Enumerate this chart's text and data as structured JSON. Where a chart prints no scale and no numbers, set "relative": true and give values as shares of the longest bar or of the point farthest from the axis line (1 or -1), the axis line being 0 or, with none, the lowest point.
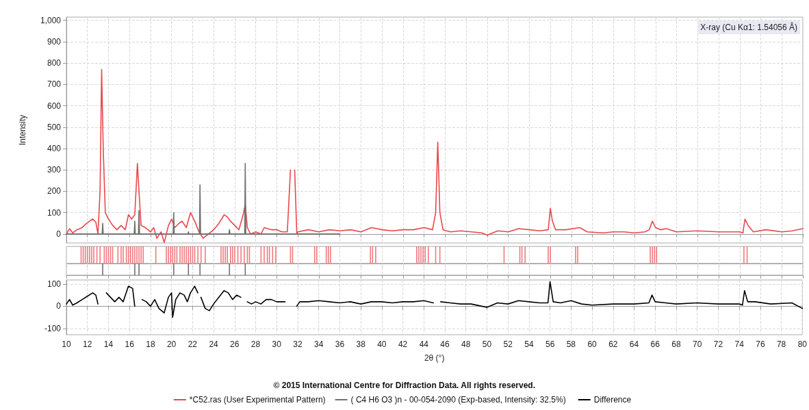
{
  "chart_data": [
    {
      "type": "line",
      "ylabel": "Intensity",
      "xlim": [
        10,
        80
      ],
      "xticks": [
        10,
        12,
        14,
        16,
        18,
        20,
        22,
        24,
        26,
        28,
        30,
        32,
        34,
        36,
        38,
        40,
        42,
        44,
        46,
        48,
        50,
        52,
        54,
        56,
        58,
        60,
        62,
        64,
        66,
        68,
        70,
        72,
        74,
        76,
        78,
        80
      ],
      "ylim": [
        -42,
        1015
      ],
      "yticks": [
        0,
        100,
        200,
        300,
        400,
        500,
        600,
        700,
        800,
        900,
        {
          "value": 1000,
          "label": "1,000"
        }
      ],
      "grid": true,
      "legend": "bottom",
      "marker": "none",
      "line_style": "solid",
      "tick_labels": "y",
      "annotations": [
        "X-ray (Cu Kα1: 1.54056 Å)",
        "© 2015 International Centre for Diffraction Data. All rights reserved."
      ],
      "series": [
        {
          "name": "*C52.ras (User Experimental Pattern)",
          "color": "#e8474c",
          "x": [
            10,
            10.3,
            10.6,
            11,
            11.5,
            11.8,
            12.2,
            12.5,
            12.8,
            13.0,
            13.2,
            13.35,
            13.5,
            13.7,
            14,
            14.4,
            14.8,
            15.2,
            15.6,
            15.9,
            16.2,
            16.5,
            16.75,
            16.9,
            17.1,
            17.5,
            18,
            18.3,
            18.6,
            19,
            19.3,
            19.7,
            20,
            20.3,
            20.7,
            21,
            21.4,
            21.8,
            22.2,
            22.6,
            23,
            23.5,
            24,
            24.5,
            25,
            25.3,
            25.6,
            26,
            26.4,
            26.8,
            27.0,
            27.2,
            27.5,
            28,
            28.5,
            28.8,
            29.5,
            30,
            30.5,
            31,
            31.3,
            31.5,
            31.7,
            31.9,
            32,
            33,
            34,
            35,
            36,
            37,
            38,
            39,
            40,
            41,
            42,
            43,
            44,
            44.8,
            45.1,
            45.3,
            45.5,
            45.8,
            46.5,
            47.5,
            48.5,
            49.5,
            50,
            51,
            52,
            53,
            54,
            55,
            55.8,
            56.0,
            56.2,
            56.5,
            57.5,
            58.8,
            59.5,
            61,
            62,
            63,
            64,
            65,
            65.4,
            65.7,
            66.0,
            66.5,
            67,
            68,
            70,
            72,
            74,
            74.3,
            74.5,
            74.8,
            75.3,
            76.5,
            78,
            79,
            80
          ],
          "values": [
            0,
            25,
            5,
            20,
            30,
            45,
            60,
            70,
            55,
            0,
            200,
            770,
            400,
            100,
            70,
            40,
            20,
            40,
            20,
            90,
            70,
            90,
            330,
            200,
            40,
            30,
            10,
            30,
            -20,
            10,
            -40,
            40,
            70,
            30,
            50,
            60,
            30,
            100,
            60,
            10,
            -20,
            0,
            20,
            50,
            90,
            80,
            60,
            40,
            20,
            90,
            140,
            30,
            0,
            10,
            0,
            30,
            20,
            20,
            10,
            10,
            300,
            null,
            300,
            0,
            10,
            20,
            10,
            20,
            15,
            20,
            10,
            30,
            20,
            15,
            20,
            20,
            30,
            20,
            100,
            430,
            100,
            20,
            10,
            15,
            10,
            5,
            -5,
            15,
            10,
            25,
            20,
            15,
            20,
            120,
            60,
            20,
            20,
            30,
            10,
            5,
            10,
            10,
            5,
            10,
            20,
            60,
            30,
            20,
            25,
            10,
            15,
            10,
            10,
            5,
            70,
            40,
            10,
            20,
            10,
            15,
            25
          ]
        },
        {
          "name": "( C4 H6 O3 )n - 00-054-2090 (Exp-based, Intensity: 32.5%)",
          "color": "#707070",
          "x": [
            10,
            13.4,
            13.45,
            13.5,
            16.45,
            16.5,
            16.55,
            16.85,
            16.9,
            16.95,
            20.15,
            20.2,
            20.25,
            21.55,
            21.6,
            21.65,
            22.65,
            22.7,
            22.75,
            25.45,
            25.5,
            25.55,
            26.95,
            27.0,
            27.05,
            36
          ],
          "values": [
            0,
            0,
            50,
            0,
            0,
            60,
            0,
            0,
            110,
            0,
            0,
            100,
            0,
            0,
            10,
            0,
            0,
            230,
            0,
            0,
            20,
            0,
            0,
            330,
            0,
            0
          ]
        }
      ]
    },
    {
      "type": "bar",
      "relative": true,
      "xlim": [
        10,
        80
      ],
      "xticks": [
        10,
        12,
        14,
        16,
        18,
        20,
        22,
        24,
        26,
        28,
        30,
        32,
        34,
        36,
        38,
        40,
        42,
        44,
        46,
        48,
        50,
        52,
        54,
        56,
        58,
        60,
        62,
        64,
        66,
        68,
        70,
        72,
        74,
        76,
        78,
        80
      ],
      "grid": "x",
      "tick_labels": false,
      "series": [
        {
          "color": "#f07a7e",
          "x": [
            11.4,
            11.6,
            11.8,
            12.0,
            12.2,
            12.4,
            12.6,
            12.9,
            13.2,
            13.6,
            13.8,
            14.0,
            14.2,
            14.4,
            14.9,
            15.2,
            15.4,
            15.7,
            15.9,
            16.1,
            16.3,
            16.5,
            16.7,
            16.9,
            17.1,
            17.3,
            18.5,
            19.5,
            19.7,
            19.9,
            20.1,
            20.3,
            20.5,
            20.8,
            21.0,
            21.2,
            21.4,
            21.6,
            21.8,
            22.0,
            22.2,
            22.5,
            22.8,
            23.2,
            24.7,
            24.9,
            25.1,
            25.3,
            25.6,
            25.8,
            26.0,
            26.3,
            26.6,
            26.9,
            27.2,
            27.4,
            28.5,
            28.8,
            29.1,
            29.3,
            29.6,
            29.9,
            31.3,
            31.5,
            33.6,
            33.8,
            34.7,
            34.9,
            35.1,
            38.9,
            39.1,
            39.4,
            43.3,
            43.5,
            43.7,
            43.9,
            44.1,
            44.4,
            45.1,
            45.5,
            51.6,
            53.1,
            53.3,
            53.6,
            55.8,
            56.0,
            58.4,
            58.6,
            65.5,
            65.7,
            65.9,
            66.1,
            74.4,
            74.7
          ],
          "values": [
            1,
            1,
            1,
            1,
            1,
            1,
            1,
            1,
            1,
            1,
            1,
            1,
            1,
            1,
            1,
            1,
            1,
            1,
            1,
            1,
            1,
            1,
            1,
            1,
            1,
            1,
            1,
            1,
            1,
            1,
            1,
            1,
            1,
            1,
            1,
            1,
            1,
            1,
            1,
            1,
            1,
            1,
            1,
            1,
            1,
            1,
            1,
            1,
            1,
            1,
            1,
            1,
            1,
            1,
            1,
            1,
            1,
            1,
            1,
            1,
            1,
            1,
            1,
            1,
            1,
            1,
            1,
            1,
            1,
            1,
            1,
            1,
            1,
            1,
            1,
            1,
            1,
            1,
            1,
            1,
            1,
            1,
            1,
            1,
            1,
            1,
            1,
            1,
            1,
            1,
            1,
            1,
            1,
            1
          ]
        }
      ]
    },
    {
      "type": "bar",
      "relative": true,
      "xlim": [
        10,
        80
      ],
      "xticks": [
        10,
        12,
        14,
        16,
        18,
        20,
        22,
        24,
        26,
        28,
        30,
        32,
        34,
        36,
        38,
        40,
        42,
        44,
        46,
        48,
        50,
        52,
        54,
        56,
        58,
        60,
        62,
        64,
        66,
        68,
        70,
        72,
        74,
        76,
        78,
        80
      ],
      "grid": "x",
      "tick_labels": false,
      "series": [
        {
          "color": "#707070",
          "x": [
            13.45,
            16.5,
            16.9,
            20.2,
            21.6,
            22.7,
            25.5,
            27.0
          ],
          "values": [
            1,
            1,
            1,
            1,
            1,
            1,
            1,
            1
          ]
        }
      ]
    },
    {
      "type": "line",
      "xlabel": "2θ (°)",
      "xlim": [
        10,
        80
      ],
      "xticks": [
        10,
        12,
        14,
        16,
        18,
        20,
        22,
        24,
        26,
        28,
        30,
        32,
        34,
        36,
        38,
        40,
        42,
        44,
        46,
        48,
        50,
        52,
        54,
        56,
        58,
        60,
        62,
        64,
        66,
        68,
        70,
        72,
        74,
        76,
        78,
        80
      ],
      "ylim": [
        -128,
        118
      ],
      "yticks": [
        -100,
        0,
        100
      ],
      "grid": true,
      "legend": "bottom",
      "marker": "none",
      "line_style": "solid",
      "series": [
        {
          "name": "Difference",
          "color": "#000000",
          "x": [
            10,
            10.3,
            10.6,
            11,
            11.5,
            12,
            12.5,
            12.8,
            13.0,
            13.2,
            13.6,
            13.8,
            14.2,
            14.6,
            15,
            15.4,
            15.9,
            16.3,
            16.5,
            16.7,
            17.0,
            17.2,
            17.6,
            18,
            18.4,
            18.8,
            19.3,
            19.7,
            20,
            20.1,
            20.4,
            20.8,
            21.2,
            21.5,
            21.8,
            22.2,
            22.5,
            22.7,
            22.8,
            23.2,
            23.6,
            24,
            24.5,
            25,
            25.4,
            25.8,
            26.2,
            26.6,
            26.9,
            27.0,
            27.2,
            27.6,
            28,
            28.5,
            29,
            29.5,
            30,
            30.8,
            31.2,
            31.7,
            31.9,
            32.2,
            33,
            34,
            35,
            36,
            37,
            38,
            39,
            40,
            41,
            42,
            43,
            44,
            44.9,
            45.2,
            45.4,
            45.6,
            46.5,
            47.5,
            48.5,
            49.5,
            50,
            51,
            52,
            53,
            54,
            55,
            55.8,
            56.0,
            56.3,
            57,
            58,
            59,
            60,
            62,
            64,
            65.4,
            65.7,
            66,
            67,
            68,
            70,
            72,
            74,
            74.3,
            74.5,
            74.8,
            75.5,
            77,
            79,
            80
          ],
          "values": [
            10,
            30,
            5,
            15,
            30,
            45,
            60,
            50,
            10,
            null,
            null,
            60,
            40,
            20,
            40,
            20,
            90,
            80,
            0,
            null,
            null,
            30,
            20,
            0,
            30,
            -10,
            -30,
            40,
            60,
            -50,
            30,
            60,
            50,
            20,
            60,
            90,
            60,
            null,
            40,
            -10,
            -20,
            10,
            40,
            70,
            60,
            30,
            50,
            40,
            null,
            null,
            20,
            10,
            20,
            10,
            30,
            30,
            20,
            20,
            null,
            null,
            0,
            20,
            20,
            25,
            20,
            15,
            20,
            10,
            20,
            20,
            15,
            20,
            20,
            25,
            15,
            null,
            null,
            20,
            15,
            10,
            10,
            0,
            -5,
            15,
            10,
            25,
            20,
            15,
            15,
            110,
            20,
            15,
            25,
            10,
            5,
            10,
            10,
            15,
            50,
            20,
            15,
            10,
            15,
            10,
            10,
            5,
            70,
            20,
            20,
            10,
            15,
            -10
          ]
        }
      ]
    }
  ]
}
